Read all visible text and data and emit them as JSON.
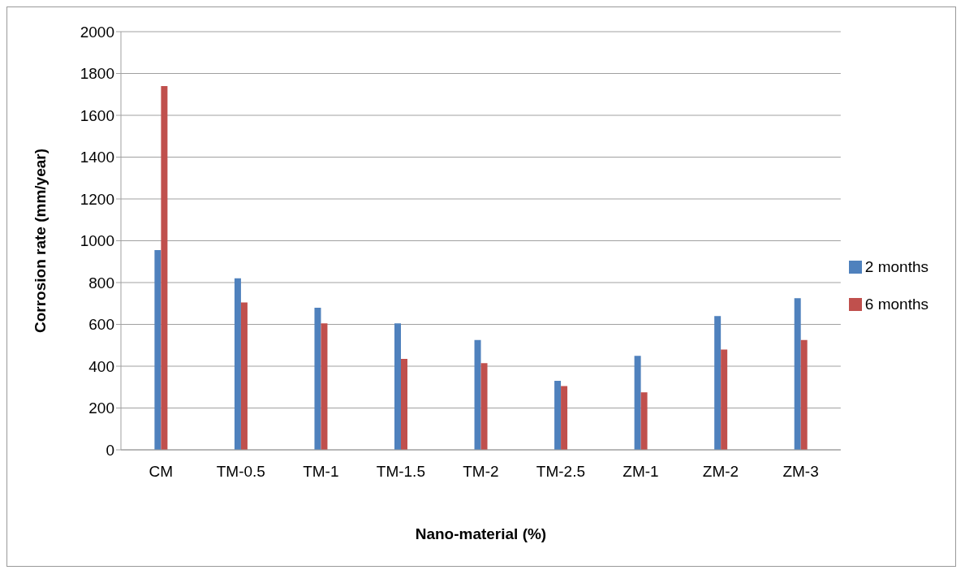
{
  "chart_data": {
    "type": "bar",
    "xlabel": "Nano-material (%)",
    "ylabel": "Corrosion rate (mm/year)",
    "categories": [
      "CM",
      "TM-0.5",
      "TM-1",
      "TM-1.5",
      "TM-2",
      "TM-2.5",
      "ZM-1",
      "ZM-2",
      "ZM-3"
    ],
    "series": [
      {
        "name": "2 months",
        "color": "#4f81bd",
        "values": [
          955,
          820,
          680,
          605,
          525,
          330,
          450,
          640,
          725
        ]
      },
      {
        "name": "6 months",
        "color": "#c0504d",
        "values": [
          1740,
          705,
          605,
          435,
          415,
          305,
          275,
          480,
          525
        ]
      }
    ],
    "ylim": [
      0,
      2000
    ],
    "yticks": [
      0,
      200,
      400,
      600,
      800,
      1000,
      1200,
      1400,
      1600,
      1800,
      2000
    ],
    "grid": "y",
    "legend": "right"
  }
}
